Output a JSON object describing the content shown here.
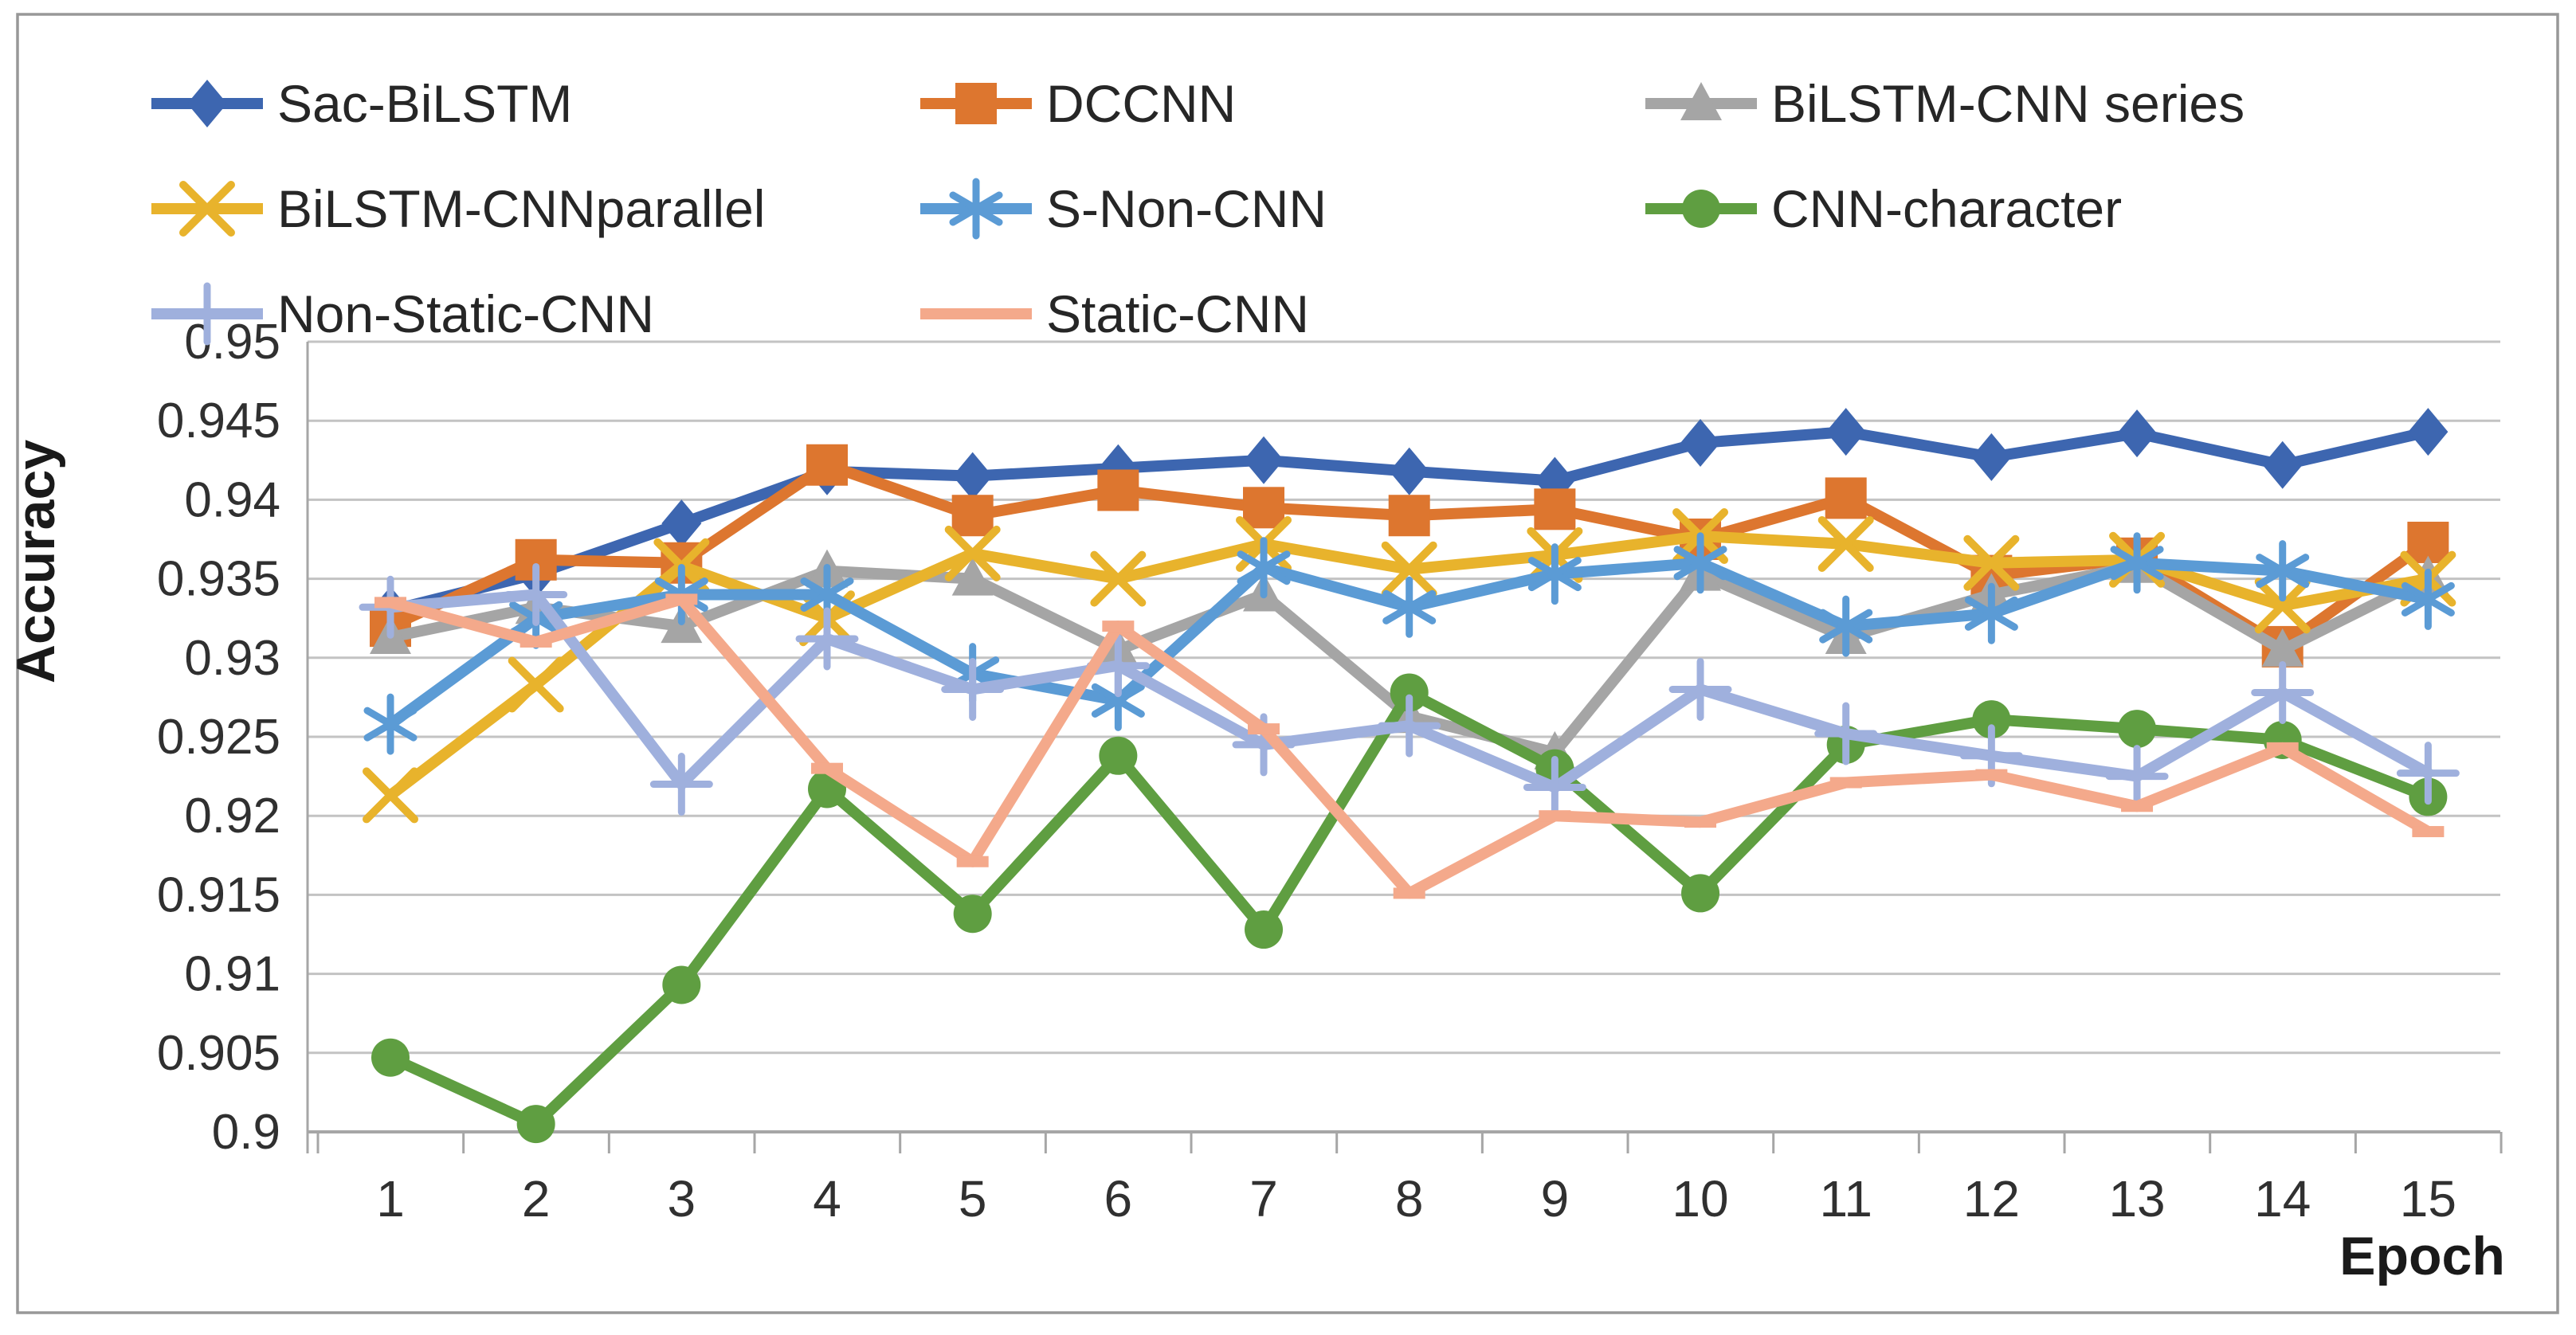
{
  "frame": {
    "border_color": "#989898",
    "background": "#ffffff"
  },
  "chart_data": {
    "type": "line",
    "title": "",
    "xlabel": "Epoch",
    "ylabel": "Accuracy",
    "x": [
      1,
      2,
      3,
      4,
      5,
      6,
      7,
      8,
      9,
      10,
      11,
      12,
      13,
      14,
      15
    ],
    "xtick_labels": [
      "1",
      "2",
      "3",
      "4",
      "5",
      "6",
      "7",
      "8",
      "9",
      "10",
      "11",
      "12",
      "13",
      "14",
      "15"
    ],
    "ylim": [
      0.9,
      0.95
    ],
    "ytick_step": 0.005,
    "ytick_values": [
      0.95,
      0.945,
      0.94,
      0.935,
      0.93,
      0.925,
      0.92,
      0.915,
      0.91,
      0.905,
      0.9
    ],
    "ytick_labels": [
      "0.95",
      "0.945",
      "0.94",
      "0.935",
      "0.93",
      "0.925",
      "0.92",
      "0.915",
      "0.91",
      "0.905",
      "0.9"
    ],
    "grid": true,
    "gridline_color": "#c3c3c3",
    "axis_color": "#a6a6a6",
    "legend_position": "top-left-three-columns",
    "series": [
      {
        "name": "Sac-BiLSTM",
        "color": "#3d66b0",
        "marker": "diamond",
        "values": [
          0.933,
          0.9353,
          0.9385,
          0.9418,
          0.9415,
          0.942,
          0.9425,
          0.9418,
          0.9412,
          0.9436,
          0.9443,
          0.9427,
          0.9442,
          0.9422,
          0.9443
        ]
      },
      {
        "name": "DCCNN",
        "color": "#dd762f",
        "marker": "square",
        "values": [
          0.932,
          0.9362,
          0.936,
          0.9422,
          0.939,
          0.9406,
          0.9395,
          0.939,
          0.9394,
          0.9375,
          0.9401,
          0.9352,
          0.9363,
          0.9307,
          0.9373
        ]
      },
      {
        "name": "BiLSTM-CNN series",
        "color": "#a5a5a5",
        "marker": "triangle",
        "values": [
          0.9313,
          0.9332,
          0.932,
          0.9355,
          0.935,
          0.9305,
          0.934,
          0.9263,
          0.924,
          0.9353,
          0.9313,
          0.934,
          0.9358,
          0.9305,
          0.9351
        ]
      },
      {
        "name": "BiLSTM-CNNparallel",
        "color": "#e8b32c",
        "marker": "x",
        "values": [
          0.9213,
          0.9283,
          0.9358,
          0.9325,
          0.9366,
          0.935,
          0.9372,
          0.9356,
          0.9365,
          0.9377,
          0.9372,
          0.936,
          0.9362,
          0.9333,
          0.935
        ]
      },
      {
        "name": "S-Non-CNN",
        "color": "#5b9bd5",
        "marker": "asterisk",
        "values": [
          0.9258,
          0.9325,
          0.934,
          0.934,
          0.929,
          0.9273,
          0.9357,
          0.9332,
          0.9353,
          0.936,
          0.932,
          0.9328,
          0.936,
          0.9355,
          0.9337
        ]
      },
      {
        "name": "CNN-character",
        "color": "#5f9e41",
        "marker": "circle",
        "values": [
          0.9047,
          0.9005,
          0.9093,
          0.9217,
          0.9138,
          0.9238,
          0.9128,
          0.9278,
          0.923,
          0.9151,
          0.9245,
          0.9261,
          0.9255,
          0.9248,
          0.9212
        ]
      },
      {
        "name": "Non-Static-CNN",
        "color": "#9fb0dd",
        "marker": "plus",
        "values": [
          0.9332,
          0.934,
          0.922,
          0.9312,
          0.928,
          0.9295,
          0.9245,
          0.9257,
          0.9218,
          0.928,
          0.9252,
          0.9238,
          0.9225,
          0.9278,
          0.9227
        ]
      },
      {
        "name": "Static-CNN",
        "color": "#f4a98b",
        "marker": "dash",
        "values": [
          0.9335,
          0.931,
          0.9337,
          0.923,
          0.9171,
          0.932,
          0.9255,
          0.9151,
          0.92,
          0.9196,
          0.9221,
          0.9226,
          0.9206,
          0.9243,
          0.919
        ]
      }
    ]
  }
}
